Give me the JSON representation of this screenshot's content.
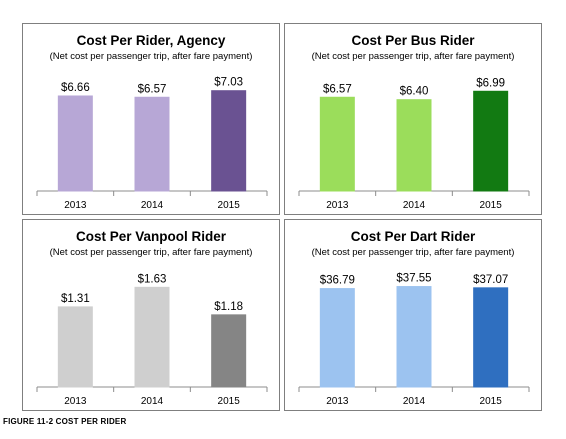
{
  "figure_caption": "Figure 11-2 Cost per Rider",
  "chart_data": [
    {
      "type": "bar",
      "title": "Cost Per Rider, Agency",
      "subtitle": "(Net cost per passenger trip, after fare payment)",
      "categories": [
        "2013",
        "2014",
        "2015"
      ],
      "values": [
        6.66,
        6.57,
        7.03
      ],
      "value_labels": [
        "$6.66",
        "$6.57",
        "$7.03"
      ],
      "colors": [
        "#b7a7d6",
        "#b7a7d6",
        "#6a5292"
      ],
      "ylim": [
        0,
        7.5
      ],
      "grid": false
    },
    {
      "type": "bar",
      "title": "Cost Per Bus Rider",
      "subtitle": "(Net cost per passenger trip, after fare payment)",
      "categories": [
        "2013",
        "2014",
        "2015"
      ],
      "values": [
        6.57,
        6.4,
        6.99
      ],
      "value_labels": [
        "$6.57",
        "$6.40",
        "$6.99"
      ],
      "colors": [
        "#9bdd5b",
        "#9bdd5b",
        "#127a12"
      ],
      "ylim": [
        0,
        7.5
      ],
      "grid": false
    },
    {
      "type": "bar",
      "title": "Cost Per Vanpool Rider",
      "subtitle": "(Net cost per passenger trip, after fare payment)",
      "categories": [
        "2013",
        "2014",
        "2015"
      ],
      "values": [
        1.31,
        1.63,
        1.18
      ],
      "value_labels": [
        "$1.31",
        "$1.63",
        "$1.18"
      ],
      "colors": [
        "#cfcfcf",
        "#cfcfcf",
        "#858585"
      ],
      "ylim": [
        0,
        1.75
      ],
      "grid": false
    },
    {
      "type": "bar",
      "title": "Cost Per Dart Rider",
      "subtitle": "(Net cost per passenger trip, after fare payment)",
      "categories": [
        "2013",
        "2014",
        "2015"
      ],
      "values": [
        36.79,
        37.55,
        37.07
      ],
      "value_labels": [
        "$36.79",
        "$37.55",
        "$37.07"
      ],
      "colors": [
        "#9cc3f0",
        "#9cc3f0",
        "#2f6fc0"
      ],
      "ylim": [
        0,
        40
      ],
      "grid": false
    }
  ]
}
